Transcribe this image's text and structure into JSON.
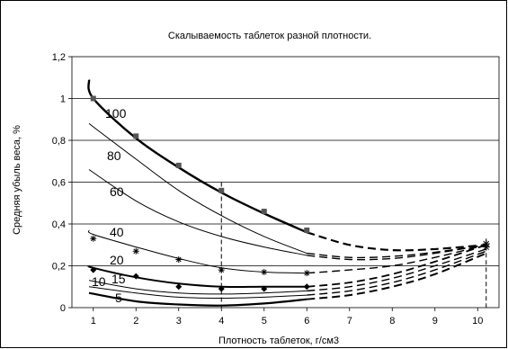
{
  "chart_data": {
    "type": "line",
    "title": "Скалываемость таблеток разной плотности.",
    "xlabel": "Плотность таблеток, г/см3",
    "ylabel": "Средняя убыль веса, %",
    "xlim": [
      0.5,
      10.5
    ],
    "ylim": [
      0,
      1.2
    ],
    "x_ticks": [
      "1",
      "2",
      "3",
      "4",
      "5",
      "6",
      "7",
      "8",
      "9",
      "10"
    ],
    "y_ticks": [
      "0",
      "0,2",
      "0,4",
      "0,6",
      "0,8",
      "1",
      "1,2"
    ],
    "grid": "horizontal",
    "marker_x": [
      1,
      2,
      3,
      4,
      5,
      6
    ],
    "dashed_reference_x": [
      4,
      10.2
    ],
    "series": [
      {
        "name": "100",
        "stroke_width": 2.4,
        "marker": "square",
        "solid": [
          [
            0.9,
            1.09
          ],
          [
            1,
            1.0
          ],
          [
            2,
            0.81
          ],
          [
            3,
            0.67
          ],
          [
            4,
            0.55
          ],
          [
            5,
            0.45
          ],
          [
            6,
            0.36
          ]
        ],
        "markers": [
          [
            1,
            1.0
          ],
          [
            2,
            0.82
          ],
          [
            3,
            0.68
          ],
          [
            4,
            0.56
          ],
          [
            5,
            0.46
          ],
          [
            6,
            0.37
          ]
        ],
        "dashed": [
          [
            6,
            0.36
          ],
          [
            7,
            0.3
          ],
          [
            8,
            0.275
          ],
          [
            9,
            0.28
          ],
          [
            10.2,
            0.3
          ]
        ]
      },
      {
        "name": "80",
        "stroke_width": 1,
        "marker": "none",
        "solid": [
          [
            0.9,
            0.88
          ],
          [
            2,
            0.71
          ],
          [
            3,
            0.56
          ],
          [
            4,
            0.44
          ],
          [
            5,
            0.34
          ],
          [
            6,
            0.26
          ]
        ],
        "markers": [],
        "dashed": [
          [
            6,
            0.26
          ],
          [
            7,
            0.24
          ],
          [
            8,
            0.245
          ],
          [
            9,
            0.265
          ],
          [
            10.2,
            0.3
          ]
        ]
      },
      {
        "name": "60",
        "stroke_width": 1,
        "marker": "none",
        "solid": [
          [
            0.9,
            0.66
          ],
          [
            2,
            0.51
          ],
          [
            3,
            0.41
          ],
          [
            4,
            0.34
          ],
          [
            5,
            0.29
          ],
          [
            6,
            0.25
          ]
        ],
        "markers": [],
        "dashed": [
          [
            6,
            0.25
          ],
          [
            7,
            0.23
          ],
          [
            8,
            0.235
          ],
          [
            9,
            0.26
          ],
          [
            10.2,
            0.3
          ]
        ]
      },
      {
        "name": "40",
        "stroke_width": 1,
        "marker": "star",
        "solid": [
          [
            0.9,
            0.37
          ],
          [
            1,
            0.35
          ],
          [
            2,
            0.29
          ],
          [
            3,
            0.235
          ],
          [
            4,
            0.19
          ],
          [
            5,
            0.17
          ],
          [
            6,
            0.165
          ]
        ],
        "markers": [
          [
            1,
            0.33
          ],
          [
            2,
            0.27
          ],
          [
            3,
            0.23
          ],
          [
            4,
            0.18
          ],
          [
            5,
            0.17
          ],
          [
            6,
            0.165
          ]
        ],
        "dashed": [
          [
            6,
            0.165
          ],
          [
            7,
            0.18
          ],
          [
            8,
            0.2
          ],
          [
            9,
            0.24
          ],
          [
            10.2,
            0.3
          ]
        ]
      },
      {
        "name": "20",
        "stroke_width": 2,
        "marker": "diamond",
        "solid": [
          [
            0.9,
            0.2
          ],
          [
            1,
            0.19
          ],
          [
            2,
            0.145
          ],
          [
            3,
            0.115
          ],
          [
            4,
            0.1
          ],
          [
            5,
            0.1
          ],
          [
            6,
            0.1
          ]
        ],
        "markers": [
          [
            1,
            0.18
          ],
          [
            2,
            0.15
          ],
          [
            3,
            0.1
          ],
          [
            4,
            0.09
          ],
          [
            5,
            0.09
          ],
          [
            6,
            0.1
          ]
        ],
        "dashed": [
          [
            6,
            0.1
          ],
          [
            7,
            0.12
          ],
          [
            8,
            0.16
          ],
          [
            9,
            0.22
          ],
          [
            10.2,
            0.3
          ]
        ]
      },
      {
        "name": "15",
        "stroke_width": 1,
        "marker": "none",
        "solid": [
          [
            0.9,
            0.13
          ],
          [
            2,
            0.09
          ],
          [
            3,
            0.07
          ],
          [
            4,
            0.065
          ],
          [
            5,
            0.07
          ],
          [
            6,
            0.08
          ]
        ],
        "markers": [],
        "dashed": [
          [
            6,
            0.08
          ],
          [
            7,
            0.1
          ],
          [
            8,
            0.14
          ],
          [
            9,
            0.2
          ],
          [
            10.2,
            0.28
          ]
        ]
      },
      {
        "name": "10",
        "stroke_width": 1,
        "marker": "none",
        "solid": [
          [
            0.9,
            0.1
          ],
          [
            2,
            0.07
          ],
          [
            3,
            0.05
          ],
          [
            4,
            0.045
          ],
          [
            5,
            0.05
          ],
          [
            6,
            0.06
          ]
        ],
        "markers": [],
        "dashed": [
          [
            6,
            0.06
          ],
          [
            7,
            0.08
          ],
          [
            8,
            0.12
          ],
          [
            9,
            0.18
          ],
          [
            10.2,
            0.27
          ]
        ]
      },
      {
        "name": "5",
        "stroke_width": 2.2,
        "marker": "none",
        "solid": [
          [
            0.9,
            0.07
          ],
          [
            2,
            0.03
          ],
          [
            3,
            0.015
          ],
          [
            4,
            0.01
          ],
          [
            5,
            0.02
          ],
          [
            6,
            0.04
          ]
        ],
        "markers": [],
        "dashed": [
          [
            6,
            0.04
          ],
          [
            7,
            0.06
          ],
          [
            8,
            0.1
          ],
          [
            9,
            0.16
          ],
          [
            10.2,
            0.26
          ]
        ]
      }
    ]
  }
}
